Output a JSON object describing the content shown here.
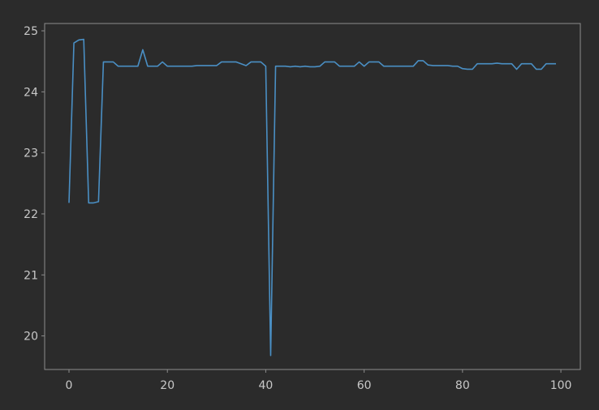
{
  "colors": {
    "background": "#2b2b2b",
    "axes": "#8c8c8c",
    "text": "#c8c8c8",
    "line": "#4a8fc4"
  },
  "chart_data": {
    "type": "line",
    "title": "",
    "xlabel": "",
    "ylabel": "",
    "xlim": [
      -4.95,
      103.95
    ],
    "ylim": [
      19.45,
      25.12
    ],
    "grid": false,
    "legend": "none",
    "x_ticks": [
      0,
      20,
      40,
      60,
      80,
      100
    ],
    "x_tick_labels": [
      "0",
      "20",
      "40",
      "60",
      "80",
      "100"
    ],
    "y_ticks": [
      20,
      21,
      22,
      23,
      24,
      25
    ],
    "y_tick_labels": [
      "20",
      "21",
      "22",
      "23",
      "24",
      "25"
    ],
    "series": [
      {
        "name": "",
        "x": [
          0,
          1,
          2,
          3,
          4,
          5,
          6,
          7,
          8,
          9,
          10,
          11,
          12,
          13,
          14,
          15,
          16,
          17,
          18,
          19,
          20,
          21,
          22,
          23,
          24,
          25,
          26,
          27,
          28,
          29,
          30,
          31,
          32,
          33,
          34,
          35,
          36,
          37,
          38,
          39,
          40,
          41,
          42,
          43,
          44,
          45,
          46,
          47,
          48,
          49,
          50,
          51,
          52,
          53,
          54,
          55,
          56,
          57,
          58,
          59,
          60,
          61,
          62,
          63,
          64,
          65,
          66,
          67,
          68,
          69,
          70,
          71,
          72,
          73,
          74,
          75,
          76,
          77,
          78,
          79,
          80,
          81,
          82,
          83,
          84,
          85,
          86,
          87,
          88,
          89,
          90,
          91,
          92,
          93,
          94,
          95,
          96,
          97,
          98,
          99
        ],
        "values": [
          22.18,
          24.8,
          24.85,
          24.86,
          22.18,
          22.18,
          22.2,
          24.49,
          24.49,
          24.49,
          24.42,
          24.42,
          24.42,
          24.42,
          24.42,
          24.69,
          24.42,
          24.42,
          24.42,
          24.49,
          24.42,
          24.42,
          24.42,
          24.42,
          24.42,
          24.42,
          24.43,
          24.43,
          24.43,
          24.43,
          24.43,
          24.49,
          24.49,
          24.49,
          24.49,
          24.46,
          24.43,
          24.49,
          24.49,
          24.49,
          24.42,
          19.68,
          24.42,
          24.42,
          24.42,
          24.41,
          24.42,
          24.41,
          24.42,
          24.41,
          24.41,
          24.42,
          24.49,
          24.49,
          24.49,
          24.42,
          24.42,
          24.42,
          24.42,
          24.49,
          24.42,
          24.49,
          24.49,
          24.49,
          24.42,
          24.42,
          24.42,
          24.42,
          24.42,
          24.42,
          24.42,
          24.51,
          24.51,
          24.44,
          24.43,
          24.43,
          24.43,
          24.43,
          24.42,
          24.42,
          24.38,
          24.37,
          24.37,
          24.46,
          24.46,
          24.46,
          24.46,
          24.47,
          24.46,
          24.46,
          24.46,
          24.37,
          24.46,
          24.46,
          24.46,
          24.37,
          24.37,
          24.46,
          24.46,
          24.46
        ]
      }
    ]
  }
}
